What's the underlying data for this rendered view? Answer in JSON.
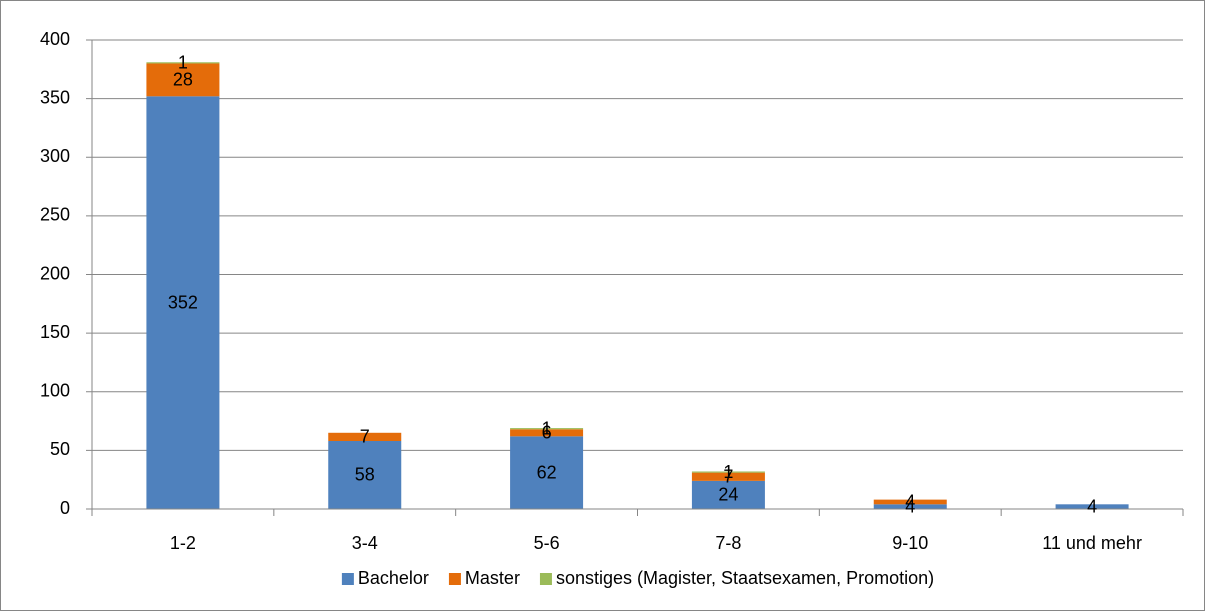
{
  "chart_data": {
    "type": "stacked_bar",
    "categories": [
      "1-2",
      "3-4",
      "5-6",
      "7-8",
      "9-10",
      "11 und mehr"
    ],
    "series": [
      {
        "name": "Bachelor",
        "color": "#4f81bd",
        "values": [
          352,
          58,
          62,
          24,
          4,
          4
        ]
      },
      {
        "name": "Master",
        "color": "#e46c0a",
        "values": [
          28,
          7,
          6,
          7,
          4,
          null
        ]
      },
      {
        "name": "sonstiges (Magister, Staatsexamen, Promotion)",
        "color": "#9bbb59",
        "values": [
          1,
          null,
          1,
          1,
          null,
          null
        ]
      }
    ],
    "ylim": [
      0,
      400
    ],
    "yticks": [
      0,
      50,
      100,
      150,
      200,
      250,
      300,
      350,
      400
    ],
    "grid": true,
    "legend": "bottom"
  }
}
